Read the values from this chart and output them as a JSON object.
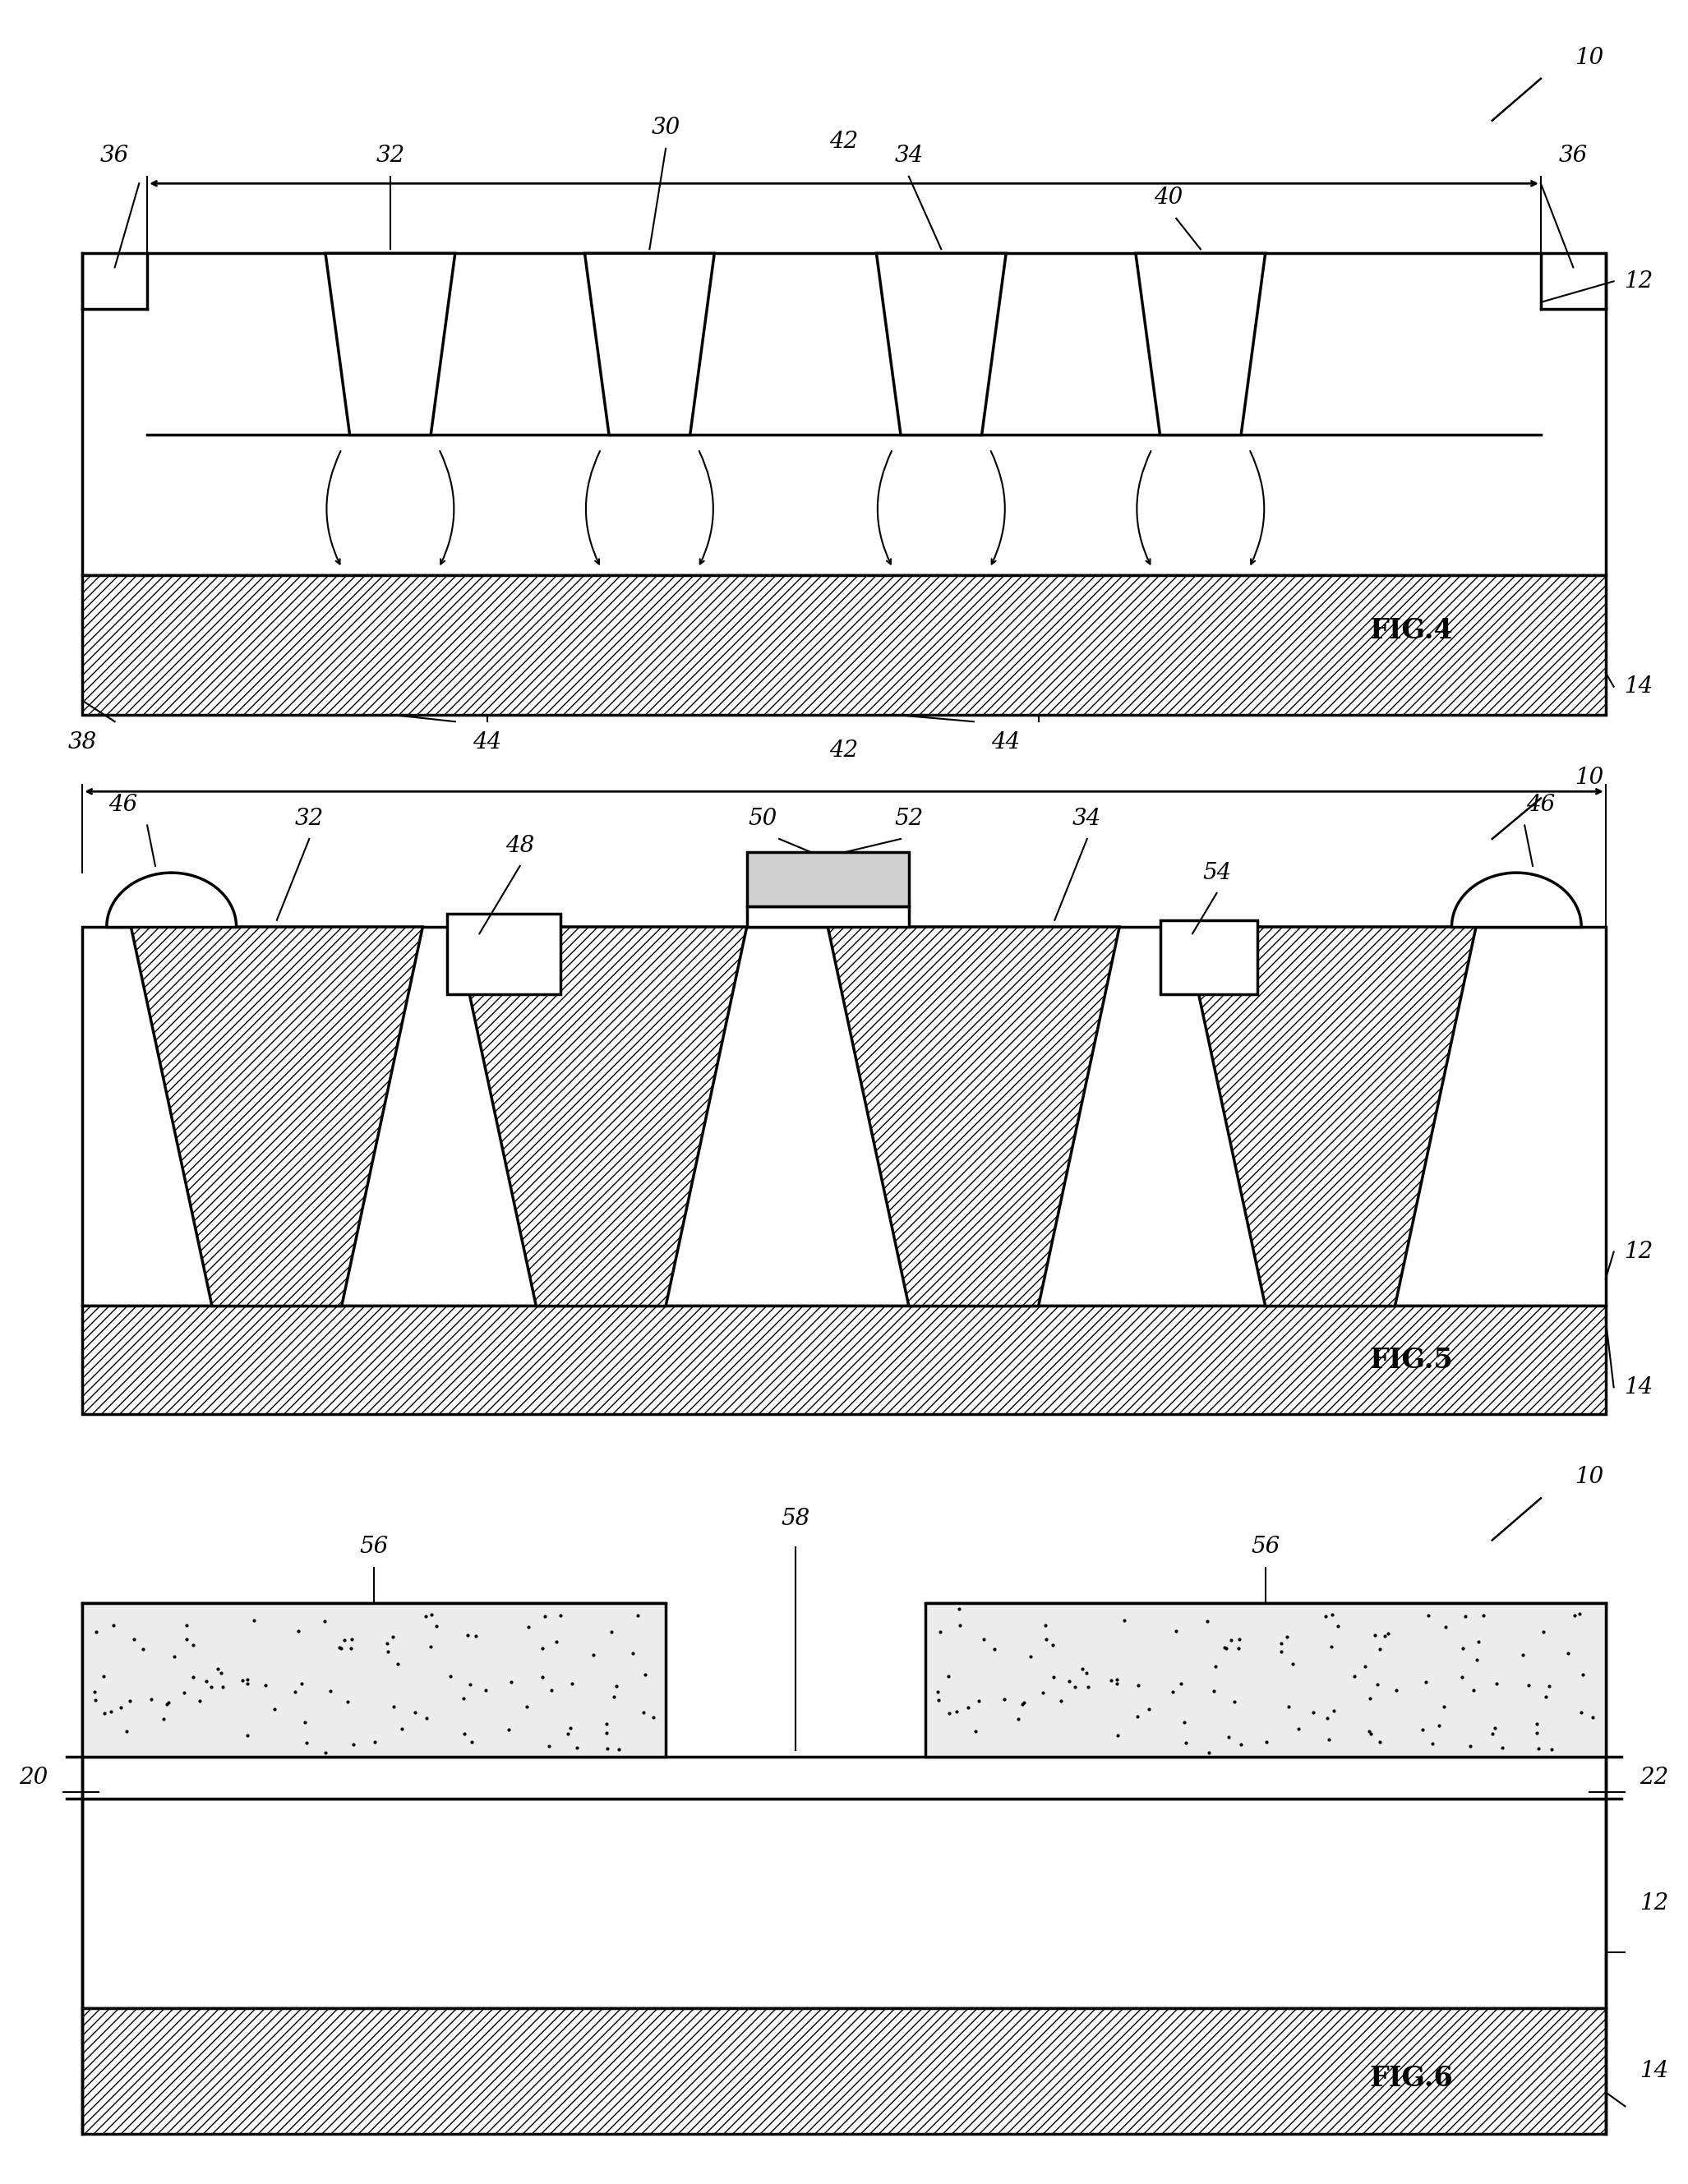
{
  "fig_label_size": 24,
  "ref_label_size": 20,
  "line_width": 2.5,
  "bg_color": "#ffffff",
  "fig4": {
    "label": "FIG.4",
    "refs": {
      "10": "10",
      "12": "12",
      "14": "14",
      "30": "30",
      "32": "32",
      "34": "34",
      "36": "36",
      "38": "38",
      "40": "40",
      "42": "42",
      "44a": "44",
      "44b": "44"
    }
  },
  "fig5": {
    "label": "FIG.5",
    "refs": {
      "10": "10",
      "12": "12",
      "14": "14",
      "32": "32",
      "34": "34",
      "42": "42",
      "46a": "46",
      "46b": "46",
      "48": "48",
      "50": "50",
      "52": "52",
      "54": "54"
    }
  },
  "fig6": {
    "label": "FIG.6",
    "refs": {
      "10": "10",
      "12": "12",
      "14": "14",
      "20": "20",
      "22": "22",
      "56a": "56",
      "56b": "56",
      "58": "58"
    }
  }
}
